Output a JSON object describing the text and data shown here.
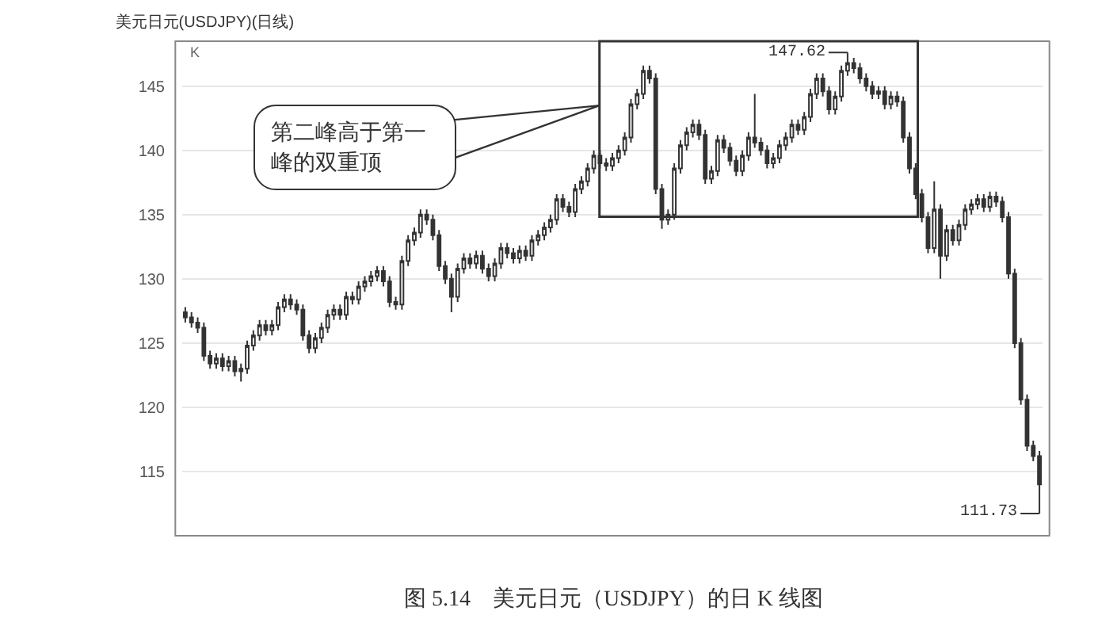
{
  "chart_data": {
    "type": "candlestick",
    "title": "美元日元(USDJPY)(日线)",
    "ylabel": "K",
    "annotations": [
      "第二峰高于第一峰的双重顶",
      "147.62",
      "111.73",
      "图 5.14　美元日元（USDJPY）的日 K 线图"
    ],
    "categories": [
      null,
      null,
      null,
      null,
      null,
      null,
      null,
      null,
      null,
      null,
      null,
      null,
      null,
      null,
      null,
      null,
      null,
      null,
      null,
      null,
      null,
      null,
      null,
      null,
      null,
      null,
      null,
      null,
      null,
      null,
      null,
      null,
      null,
      null,
      null,
      null,
      null,
      null,
      null,
      null,
      null,
      null,
      null,
      null,
      null,
      null,
      null,
      null,
      null,
      null,
      null,
      null,
      null,
      null,
      null,
      null,
      null,
      null,
      null,
      null,
      null,
      null,
      null,
      null,
      null,
      null,
      null,
      null,
      null,
      null,
      null,
      null,
      null,
      null,
      null,
      null,
      null,
      null,
      null,
      null,
      null,
      null,
      null,
      null,
      null,
      null,
      null,
      null,
      null,
      null,
      null,
      null,
      null,
      null,
      null,
      null,
      null,
      null,
      null,
      null,
      null,
      null,
      null,
      null,
      null,
      null,
      null,
      null,
      null,
      null,
      null,
      null,
      null,
      null,
      null,
      null,
      null,
      null,
      null,
      null,
      null,
      null,
      null,
      null,
      null,
      null,
      null,
      null,
      null,
      null,
      null,
      null,
      null,
      null,
      null,
      null,
      null,
      null,
      null
    ],
    "ohlc": [
      [
        127.4,
        127.8,
        126.6,
        127.0
      ],
      [
        127.0,
        127.4,
        126.2,
        126.6
      ],
      [
        126.6,
        127.0,
        125.8,
        126.2
      ],
      [
        126.2,
        126.6,
        123.6,
        124.0
      ],
      [
        124.0,
        124.4,
        123.0,
        123.4
      ],
      [
        123.4,
        124.2,
        123.0,
        123.8
      ],
      [
        123.8,
        124.2,
        122.8,
        123.2
      ],
      [
        123.2,
        124.0,
        122.8,
        123.6
      ],
      [
        123.6,
        124.0,
        122.4,
        122.8
      ],
      [
        122.8,
        123.4,
        122.0,
        123.0
      ],
      [
        123.0,
        125.2,
        122.6,
        124.8
      ],
      [
        124.8,
        126.0,
        124.4,
        125.6
      ],
      [
        125.6,
        126.8,
        125.2,
        126.4
      ],
      [
        126.4,
        126.8,
        125.6,
        126.0
      ],
      [
        126.0,
        126.8,
        125.6,
        126.4
      ],
      [
        126.4,
        128.2,
        126.0,
        127.8
      ],
      [
        127.8,
        128.8,
        127.4,
        128.4
      ],
      [
        128.4,
        128.8,
        127.6,
        128.0
      ],
      [
        128.0,
        128.4,
        127.2,
        127.6
      ],
      [
        127.6,
        128.0,
        125.2,
        125.6
      ],
      [
        125.6,
        126.0,
        124.2,
        124.6
      ],
      [
        124.6,
        125.8,
        124.2,
        125.4
      ],
      [
        125.4,
        126.6,
        125.0,
        126.2
      ],
      [
        126.2,
        127.6,
        125.8,
        127.2
      ],
      [
        127.2,
        128.0,
        126.8,
        127.6
      ],
      [
        127.6,
        128.0,
        126.8,
        127.2
      ],
      [
        127.2,
        129.0,
        126.8,
        128.6
      ],
      [
        128.6,
        129.0,
        128.0,
        128.4
      ],
      [
        128.4,
        129.8,
        128.0,
        129.4
      ],
      [
        129.4,
        130.2,
        129.0,
        129.8
      ],
      [
        129.8,
        130.6,
        129.4,
        130.2
      ],
      [
        130.2,
        131.0,
        129.8,
        130.6
      ],
      [
        130.6,
        131.0,
        129.4,
        129.8
      ],
      [
        129.8,
        130.2,
        127.8,
        128.2
      ],
      [
        128.2,
        128.6,
        127.6,
        128.0
      ],
      [
        128.0,
        131.8,
        127.6,
        131.4
      ],
      [
        131.4,
        133.4,
        131.0,
        133.0
      ],
      [
        133.0,
        134.0,
        132.6,
        133.6
      ],
      [
        133.6,
        135.4,
        133.2,
        135.0
      ],
      [
        135.0,
        135.4,
        134.2,
        134.6
      ],
      [
        134.6,
        135.0,
        133.0,
        133.4
      ],
      [
        133.4,
        133.8,
        130.6,
        131.0
      ],
      [
        131.0,
        131.4,
        129.6,
        130.0
      ],
      [
        130.0,
        130.4,
        127.4,
        128.6
      ],
      [
        128.6,
        131.2,
        128.2,
        130.8
      ],
      [
        130.8,
        132.0,
        130.4,
        131.6
      ],
      [
        131.6,
        132.0,
        130.8,
        131.2
      ],
      [
        131.2,
        132.2,
        130.8,
        131.8
      ],
      [
        131.8,
        132.2,
        130.4,
        130.8
      ],
      [
        130.8,
        131.2,
        129.8,
        130.2
      ],
      [
        130.2,
        131.6,
        129.8,
        131.2
      ],
      [
        131.2,
        132.8,
        130.8,
        132.4
      ],
      [
        132.4,
        132.8,
        131.6,
        132.0
      ],
      [
        132.0,
        132.4,
        131.2,
        131.6
      ],
      [
        131.6,
        132.6,
        131.2,
        132.2
      ],
      [
        132.2,
        132.6,
        131.4,
        131.8
      ],
      [
        131.8,
        133.4,
        131.4,
        133.0
      ],
      [
        133.0,
        133.8,
        132.6,
        133.4
      ],
      [
        133.4,
        134.4,
        133.0,
        134.0
      ],
      [
        134.0,
        135.0,
        133.6,
        134.6
      ],
      [
        134.6,
        136.6,
        134.2,
        136.2
      ],
      [
        136.2,
        136.6,
        135.2,
        135.6
      ],
      [
        135.6,
        136.0,
        134.8,
        135.2
      ],
      [
        135.2,
        137.4,
        134.8,
        137.0
      ],
      [
        137.0,
        138.0,
        136.6,
        137.6
      ],
      [
        137.6,
        139.0,
        137.2,
        138.6
      ],
      [
        138.6,
        140.0,
        138.2,
        139.6
      ],
      [
        139.6,
        140.0,
        138.6,
        139.0
      ],
      [
        139.0,
        139.4,
        138.4,
        138.8
      ],
      [
        138.8,
        139.8,
        138.4,
        139.4
      ],
      [
        139.4,
        140.4,
        139.0,
        140.0
      ],
      [
        140.0,
        141.4,
        139.6,
        141.0
      ],
      [
        141.0,
        144.0,
        140.6,
        143.6
      ],
      [
        143.6,
        144.8,
        143.2,
        144.4
      ],
      [
        144.4,
        146.6,
        144.0,
        146.2
      ],
      [
        146.2,
        146.6,
        145.2,
        145.6
      ],
      [
        145.6,
        146.0,
        136.6,
        137.0
      ],
      [
        137.0,
        137.4,
        133.9,
        134.6
      ],
      [
        134.6,
        135.4,
        134.2,
        135.0
      ],
      [
        135.0,
        139.0,
        134.6,
        138.6
      ],
      [
        138.6,
        140.8,
        138.2,
        140.4
      ],
      [
        140.4,
        141.8,
        140.0,
        141.4
      ],
      [
        141.4,
        142.4,
        141.0,
        142.0
      ],
      [
        142.0,
        142.4,
        140.8,
        141.2
      ],
      [
        141.2,
        141.6,
        137.4,
        137.8
      ],
      [
        137.8,
        138.8,
        137.4,
        138.4
      ],
      [
        138.4,
        141.2,
        138.0,
        140.8
      ],
      [
        140.8,
        141.2,
        139.8,
        140.2
      ],
      [
        140.2,
        140.6,
        138.8,
        139.2
      ],
      [
        139.2,
        139.6,
        138.0,
        138.4
      ],
      [
        138.4,
        140.0,
        138.0,
        139.6
      ],
      [
        139.6,
        141.4,
        139.2,
        141.0
      ],
      [
        141.0,
        144.4,
        140.2,
        140.6
      ],
      [
        140.6,
        141.0,
        139.6,
        140.0
      ],
      [
        140.0,
        140.4,
        138.6,
        139.0
      ],
      [
        139.0,
        139.8,
        138.6,
        139.4
      ],
      [
        139.4,
        140.8,
        139.0,
        140.4
      ],
      [
        140.4,
        141.4,
        140.0,
        141.0
      ],
      [
        141.0,
        142.4,
        140.6,
        142.0
      ],
      [
        142.0,
        142.4,
        141.2,
        141.6
      ],
      [
        141.6,
        143.0,
        141.2,
        142.6
      ],
      [
        142.6,
        144.8,
        142.2,
        144.4
      ],
      [
        144.4,
        146.0,
        144.0,
        145.6
      ],
      [
        145.6,
        146.0,
        144.2,
        144.6
      ],
      [
        144.6,
        145.0,
        142.8,
        143.2
      ],
      [
        143.2,
        144.6,
        142.8,
        144.2
      ],
      [
        144.2,
        146.6,
        143.8,
        146.2
      ],
      [
        146.2,
        147.62,
        145.8,
        146.8
      ],
      [
        146.8,
        147.2,
        146.0,
        146.4
      ],
      [
        146.4,
        146.8,
        145.2,
        145.6
      ],
      [
        145.6,
        146.0,
        144.6,
        145.0
      ],
      [
        145.0,
        145.4,
        144.0,
        144.4
      ],
      [
        144.4,
        145.0,
        144.0,
        144.6
      ],
      [
        144.6,
        145.0,
        143.2,
        143.6
      ],
      [
        143.6,
        144.6,
        143.2,
        144.2
      ],
      [
        144.2,
        144.6,
        143.4,
        143.8
      ],
      [
        143.8,
        144.2,
        140.6,
        141.0
      ],
      [
        141.0,
        141.4,
        138.2,
        138.6
      ],
      [
        138.6,
        139.0,
        136.2,
        136.6
      ],
      [
        136.6,
        137.0,
        134.4,
        134.8
      ],
      [
        134.8,
        135.2,
        132.0,
        132.4
      ],
      [
        132.4,
        137.6,
        132.0,
        135.4
      ],
      [
        135.4,
        135.8,
        130.0,
        131.8
      ],
      [
        131.8,
        134.2,
        131.4,
        133.8
      ],
      [
        133.8,
        134.2,
        132.6,
        133.0
      ],
      [
        133.0,
        134.6,
        132.6,
        134.2
      ],
      [
        134.2,
        135.8,
        133.8,
        135.4
      ],
      [
        135.4,
        136.2,
        135.0,
        135.8
      ],
      [
        135.8,
        136.6,
        135.4,
        136.2
      ],
      [
        136.2,
        136.6,
        135.2,
        135.6
      ],
      [
        135.6,
        136.8,
        135.2,
        136.4
      ],
      [
        136.4,
        136.8,
        135.6,
        136.0
      ],
      [
        136.0,
        136.4,
        134.4,
        134.8
      ],
      [
        134.8,
        135.2,
        130.0,
        130.4
      ],
      [
        130.4,
        130.8,
        124.6,
        125.0
      ],
      [
        125.0,
        125.4,
        120.2,
        120.6
      ],
      [
        120.6,
        121.0,
        116.6,
        117.0
      ],
      [
        117.0,
        117.4,
        115.8,
        116.2
      ],
      [
        116.2,
        116.6,
        111.73,
        114.0
      ]
    ],
    "ylim": [
      110,
      148.5
    ],
    "yticks": [
      115,
      120,
      125,
      130,
      135,
      140,
      145
    ],
    "grid": "y",
    "tick_labels": "y"
  }
}
